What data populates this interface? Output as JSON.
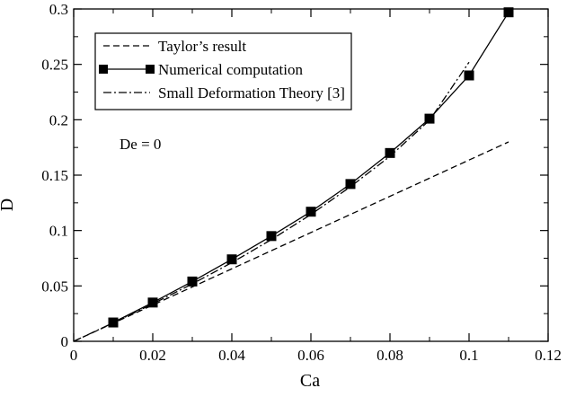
{
  "chart_data": {
    "type": "line",
    "title": "",
    "xlabel": "Ca",
    "ylabel": "D",
    "xlim": [
      0,
      0.12
    ],
    "ylim": [
      0,
      0.3
    ],
    "xticks": [
      0,
      0.02,
      0.04,
      0.06,
      0.08,
      0.1,
      0.12
    ],
    "xtick_labels": [
      "0",
      "0.02",
      "0.04",
      "0.06",
      "0.08",
      "0.1",
      "0.12"
    ],
    "yticks": [
      0,
      0.05,
      0.1,
      0.15,
      0.2,
      0.25,
      0.3
    ],
    "ytick_labels": [
      "0",
      "0.05",
      "0.1",
      "0.15",
      "0.2",
      "0.25",
      "0.3"
    ],
    "grid": false,
    "legend_position": "top-left",
    "annotation": "De = 0",
    "series": [
      {
        "name": "Taylor’s result",
        "style": "dashed",
        "marker": "none",
        "color": "#000000",
        "x": [
          0,
          0.11
        ],
        "y": [
          0,
          0.18
        ]
      },
      {
        "name": "Numerical computation",
        "style": "solid",
        "marker": "square",
        "color": "#000000",
        "x": [
          0.01,
          0.02,
          0.03,
          0.04,
          0.05,
          0.06,
          0.07,
          0.08,
          0.09,
          0.1,
          0.11
        ],
        "y": [
          0.017,
          0.035,
          0.054,
          0.074,
          0.095,
          0.117,
          0.142,
          0.17,
          0.201,
          0.24,
          0.297
        ]
      },
      {
        "name": "Small Deformation Theory [3]",
        "style": "dashdot",
        "marker": "none",
        "color": "#000000",
        "x": [
          0,
          0.01,
          0.02,
          0.03,
          0.04,
          0.05,
          0.06,
          0.07,
          0.08,
          0.09,
          0.1
        ],
        "y": [
          0,
          0.0167,
          0.0338,
          0.0518,
          0.071,
          0.0918,
          0.1145,
          0.1395,
          0.167,
          0.1995,
          0.252
        ]
      }
    ]
  }
}
